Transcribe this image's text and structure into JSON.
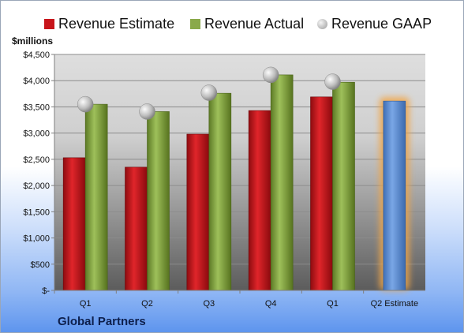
{
  "chart_data": {
    "type": "bar",
    "ylabel": "$millions",
    "categories": [
      "Q1",
      "Q2",
      "Q3",
      "Q4",
      "Q1",
      "Q2 Estimate"
    ],
    "series": [
      {
        "name": "Revenue Estimate",
        "color": "#c8151b",
        "values": [
          2530,
          2350,
          2980,
          3430,
          3690,
          3610
        ]
      },
      {
        "name": "Revenue Actual",
        "color": "#7f9e3c",
        "values": [
          3550,
          3410,
          3760,
          4110,
          3970,
          null
        ]
      },
      {
        "name": "Revenue GAAP",
        "color": "#b9b9b9",
        "marker": "sphere",
        "values": [
          3550,
          3410,
          3770,
          4110,
          3980,
          null
        ]
      }
    ],
    "forecast": {
      "category_index": 5,
      "color": "#5b8fd4",
      "glow": "#f0a64a"
    },
    "ylim": [
      0,
      4500
    ],
    "ytick_step": 500,
    "ytick_labels": [
      "$-",
      "$500",
      "$1,000",
      "$1,500",
      "$2,000",
      "$2,500",
      "$3,000",
      "$3,500",
      "$4,000",
      "$4,500"
    ],
    "grid": true,
    "legend": "top"
  },
  "footer": {
    "company": "Global Partners"
  }
}
